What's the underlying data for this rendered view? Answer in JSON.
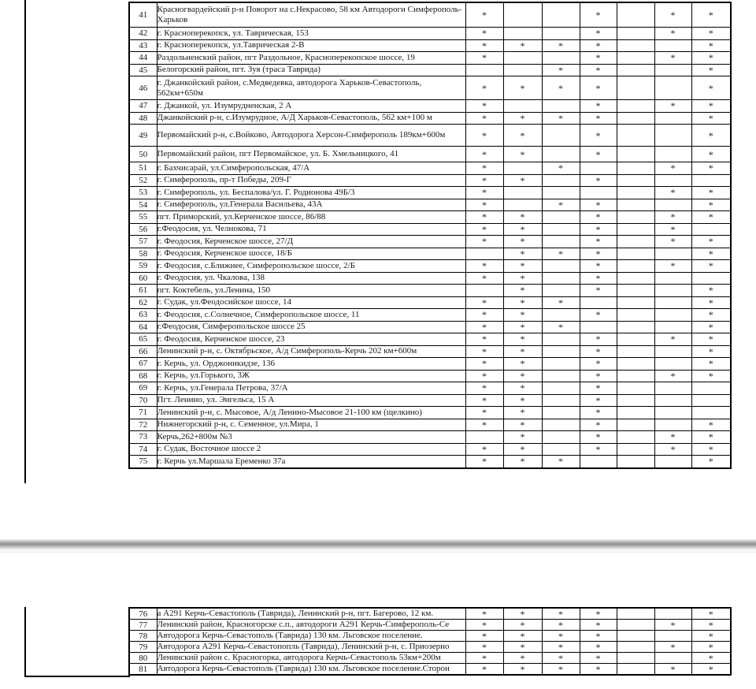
{
  "document": {
    "mark_symbol": "*",
    "page1": {
      "rows": [
        {
          "num": "41",
          "address": "Красногвардейский р-н Поворот на с.Некрасово, 58 км Автодороги Симферополь- Харьков",
          "marks": [
            "*",
            "",
            "",
            "*",
            "",
            "*",
            "*"
          ]
        },
        {
          "num": "42",
          "address": "г. Красноперекопск, ул. Таврическая, 153",
          "marks": [
            "*",
            "",
            "",
            "*",
            "",
            "*",
            "*"
          ]
        },
        {
          "num": "43",
          "address": "г. Красноперекопск, ул.Таврическая 2-В",
          "marks": [
            "*",
            "*",
            "*",
            "*",
            "",
            "",
            "*"
          ]
        },
        {
          "num": "44",
          "address": "Раздольненский район, пгт Раздольное, Красноперекопское шоссе, 19",
          "marks": [
            "*",
            "",
            "",
            "*",
            "",
            "*",
            "*"
          ]
        },
        {
          "num": "45",
          "address": "Белогорский район, пгт. Зуя (траса Таврида)",
          "marks": [
            "",
            "",
            "*",
            "*",
            "",
            "",
            "*"
          ]
        },
        {
          "num": "46",
          "address": "г. Джанкойский район, с.Медведевка, автодорога Харьков-Севастополь, 562км+650м",
          "marks": [
            "*",
            "*",
            "*",
            "*",
            "",
            "",
            "*"
          ]
        },
        {
          "num": "47",
          "address": "г. Джанкой, ул. Изумрудненская, 2 А",
          "marks": [
            "*",
            "",
            "",
            "*",
            "",
            "*",
            "*"
          ]
        },
        {
          "num": "48",
          "address": "Джанкойский р-н, с.Изумрудное, А/Д Харьков-Севастополь, 562 км+100 м",
          "marks": [
            "*",
            "*",
            "*",
            "*",
            "",
            "",
            "*"
          ]
        },
        {
          "num": "49",
          "address": "Первомайский р-н, с.Войково, Автодорога Херсон-Симферополь 189км+600м",
          "marks": [
            "*",
            "*",
            "",
            "*",
            "",
            "",
            "*"
          ]
        },
        {
          "num": "50",
          "address": "Первомайский район, пгт Первомайское, ул. Б. Хмельницкого, 41",
          "marks": [
            "*",
            "*",
            "",
            "*",
            "",
            "",
            "*"
          ]
        },
        {
          "num": "51",
          "address": "г. Бахчисарай, ул.Симферопольская, 47/А",
          "marks": [
            "*",
            "",
            "*",
            "",
            "",
            "*",
            "*"
          ]
        },
        {
          "num": "52",
          "address": "г. Симферополь, пр-т Победы, 209-Г",
          "marks": [
            "*",
            "*",
            "",
            "*",
            "",
            "",
            ""
          ]
        },
        {
          "num": "53",
          "address": "г. Симферополь, ул. Беспалова/ул. Г. Родионова 49Б/3",
          "marks": [
            "*",
            "",
            "",
            "",
            "",
            "*",
            "*"
          ]
        },
        {
          "num": "54",
          "address": "г. Симферополь, ул.Генерала Васильева, 43А",
          "marks": [
            "*",
            "",
            "*",
            "*",
            "",
            "",
            "*"
          ]
        },
        {
          "num": "55",
          "address": "пгт. Приморский, ул.Керченское шоссе, 86/88",
          "marks": [
            "*",
            "*",
            "",
            "*",
            "",
            "*",
            "*"
          ]
        },
        {
          "num": "56",
          "address": "г.Феодосия, ул. Челнокова, 71",
          "marks": [
            "*",
            "*",
            "",
            "*",
            "",
            "*",
            ""
          ]
        },
        {
          "num": "57",
          "address": "г. Феодосия, Керченское шоссе, 27/Д",
          "marks": [
            "*",
            "*",
            "",
            "*",
            "",
            "*",
            "*"
          ]
        },
        {
          "num": "58",
          "address": "г. Феодосия, Керченское шоссе, 18/Б",
          "marks": [
            "",
            "*",
            "*",
            "*",
            "",
            "",
            "*"
          ]
        },
        {
          "num": "59",
          "address": "г. Феодосия, с.Ближнее, Симферопольское шоссе, 2/Б",
          "marks": [
            "*",
            "*",
            "",
            "*",
            "",
            "*",
            "*"
          ]
        },
        {
          "num": "60",
          "address": "г. Феодосия, ул. Чкалова, 138",
          "marks": [
            "*",
            "*",
            "",
            "*",
            "",
            "",
            ""
          ]
        },
        {
          "num": "61",
          "address": "пгт. Коктебель, ул.Ленина, 150",
          "marks": [
            "",
            "*",
            "",
            "*",
            "",
            "",
            "*"
          ]
        },
        {
          "num": "62",
          "address": "г. Судак, ул.Феодосийское шоссе, 14",
          "marks": [
            "*",
            "*",
            "*",
            "",
            "",
            "",
            "*"
          ]
        },
        {
          "num": "63",
          "address": "г. Феодосия, с.Солнечное, Симферопольское шоссе, 11",
          "marks": [
            "*",
            "*",
            "",
            "*",
            "",
            "",
            "*"
          ]
        },
        {
          "num": "64",
          "address": "г.Феодосия, Симферопольское шоссе 25",
          "marks": [
            "*",
            "*",
            "*",
            "",
            "",
            "",
            "*"
          ]
        },
        {
          "num": "65",
          "address": "г. Феодосия, Керченское шоссе, 23",
          "marks": [
            "*",
            "*",
            "",
            "*",
            "",
            "*",
            "*"
          ]
        },
        {
          "num": "66",
          "address": "Ленинский р-н, с. Октябрьское, А/д Симферополь-Керчь 202 км+600м",
          "marks": [
            "*",
            "*",
            "",
            "*",
            "",
            "",
            "*"
          ]
        },
        {
          "num": "67",
          "address": "г. Керчь, ул. Орджоникидзе, 136",
          "marks": [
            "*",
            "*",
            "",
            "*",
            "",
            "",
            "*"
          ]
        },
        {
          "num": "68",
          "address": "г. Керчь, ул.Горького, 3Ж",
          "marks": [
            "*",
            "*",
            "",
            "*",
            "",
            "*",
            "*"
          ]
        },
        {
          "num": "69",
          "address": "г. Керчь, ул.Генерала Петрова, 37/А",
          "marks": [
            "*",
            "*",
            "",
            "*",
            "",
            "",
            ""
          ]
        },
        {
          "num": "70",
          "address": "Пгт. Ленино, ул. Энгельса, 15 А",
          "marks": [
            "*",
            "*",
            "",
            "*",
            "",
            "",
            ""
          ]
        },
        {
          "num": "71",
          "address": "Ленинский р-н, с. Мысовое, А/д Ленино-Мысовое 21-100 км (щелкино)",
          "marks": [
            "*",
            "*",
            "",
            "*",
            "",
            "",
            ""
          ]
        },
        {
          "num": "72",
          "address": "Нижнегорский р-н, с. Семенное, ул.Мира, 1",
          "marks": [
            "*",
            "*",
            "",
            "*",
            "",
            "",
            "*"
          ]
        },
        {
          "num": "73",
          "address": "Керчь,262+800м №3",
          "marks": [
            "",
            "*",
            "",
            "*",
            "",
            "*",
            "*"
          ]
        },
        {
          "num": "74",
          "address": "г. Судак, Восточное шоссе 2",
          "marks": [
            "*",
            "*",
            "",
            "*",
            "",
            "*",
            "*"
          ]
        },
        {
          "num": "75",
          "address": "г. Керчь ул.Маршала Еременко 37а",
          "marks": [
            "*",
            "*",
            "*",
            "",
            "",
            "",
            "*"
          ]
        }
      ]
    },
    "page2": {
      "rows": [
        {
          "num": "76",
          "address": "а А291 Керчь-Севастополь (Таврида), Ленинский р-н, пгт. Багерово, 12 км.",
          "marks": [
            "*",
            "*",
            "*",
            "*",
            "",
            "",
            "*"
          ]
        },
        {
          "num": "77",
          "address": "Ленинский район, Красногорске с.п., автодороги А291 Керчь-Симферополь-Се",
          "marks": [
            "*",
            "*",
            "*",
            "*",
            "",
            "*",
            "*"
          ]
        },
        {
          "num": "78",
          "address": "Автодорога Керчь-Севастополь (Таврида) 130 км. Льговское поселение.",
          "marks": [
            "*",
            "*",
            "*",
            "*",
            "",
            "",
            "*"
          ]
        },
        {
          "num": "79",
          "address": "Автодорога А291 Керчь-Севастопопль (Таврида), Ленинский р-н, с. Приозерно",
          "marks": [
            "*",
            "*",
            "*",
            "*",
            "",
            "*",
            "*"
          ]
        },
        {
          "num": "80",
          "address": "Ленинский район с. Красногорка, автодорога Керчь-Севастополь 53км+200м",
          "marks": [
            "*",
            "*",
            "*",
            "*",
            "",
            "",
            "*"
          ]
        },
        {
          "num": "81",
          "address": "Автодорога Керчь-Севастополь (Таврида) 130 км. Льговское поселение.Сторон",
          "marks": [
            "*",
            "*",
            "*",
            "*",
            "",
            "*",
            "*"
          ]
        }
      ]
    }
  }
}
